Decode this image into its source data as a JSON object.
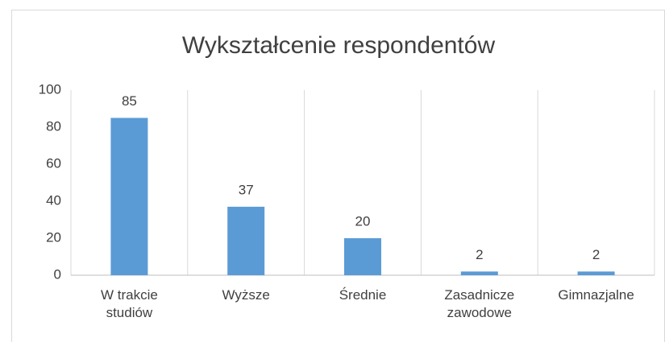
{
  "chart_data": {
    "type": "bar",
    "title": "Wykształcenie respondentów",
    "categories": [
      "W trakcie studiów",
      "Wyższe",
      "Średnie",
      "Zasadnicze zawodowe",
      "Gimnazjalne"
    ],
    "values": [
      85,
      37,
      20,
      2,
      2
    ],
    "color": "#5b9bd5",
    "ylim": [
      0,
      100
    ],
    "yticks": [
      0,
      20,
      40,
      60,
      80,
      100
    ],
    "grid": "vertical"
  }
}
